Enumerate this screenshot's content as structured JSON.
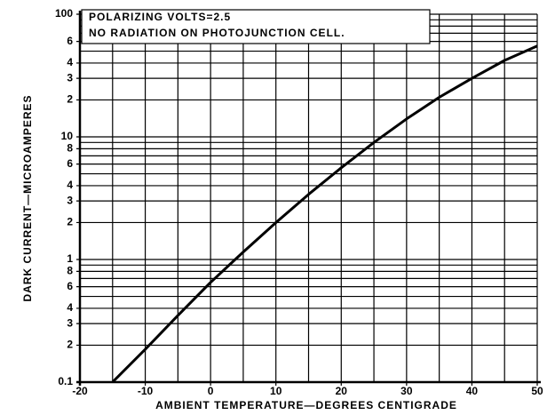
{
  "chart_data": {
    "type": "line",
    "annotations": [
      "POLARIZING VOLTS=2.5",
      "NO RADIATION ON PHOTOJUNCTION CELL."
    ],
    "xlabel": "AMBIENT TEMPERATURE—DEGREES CENTIGRADE",
    "ylabel": "DARK CURRENT—MICROAMPERES",
    "x": [
      -15,
      -10,
      -5,
      0,
      5,
      10,
      15,
      20,
      25,
      30,
      35,
      40,
      45,
      50
    ],
    "values": [
      0.1,
      0.185,
      0.35,
      0.65,
      1.15,
      2.0,
      3.4,
      5.6,
      9,
      14,
      21,
      30,
      42,
      55
    ],
    "color": "#000000",
    "xlim": [
      -20,
      50
    ],
    "xticks": [
      -20,
      -10,
      0,
      10,
      20,
      30,
      40,
      50
    ],
    "xminor": [
      -15,
      -5,
      5,
      15,
      25,
      35,
      45
    ],
    "ylim": [
      0.1,
      100
    ],
    "ylog": true,
    "yticks": [
      0.1,
      {
        "value": 0.2,
        "label": "2"
      },
      {
        "value": 0.3,
        "label": "3"
      },
      {
        "value": 0.4,
        "label": "4"
      },
      {
        "value": 0.6,
        "label": "6"
      },
      {
        "value": 0.8,
        "label": "8"
      },
      1,
      {
        "value": 2,
        "label": "2"
      },
      {
        "value": 3,
        "label": "3"
      },
      {
        "value": 4,
        "label": "4"
      },
      {
        "value": 6,
        "label": "6"
      },
      {
        "value": 8,
        "label": "8"
      },
      10,
      {
        "value": 20,
        "label": "2"
      },
      {
        "value": 30,
        "label": "3"
      },
      {
        "value": 40,
        "label": "4"
      },
      {
        "value": 60,
        "label": "6"
      },
      100
    ],
    "yminor": [
      0.5,
      0.7,
      0.9,
      5,
      7,
      9,
      50,
      70,
      80,
      90
    ],
    "grid": true
  }
}
